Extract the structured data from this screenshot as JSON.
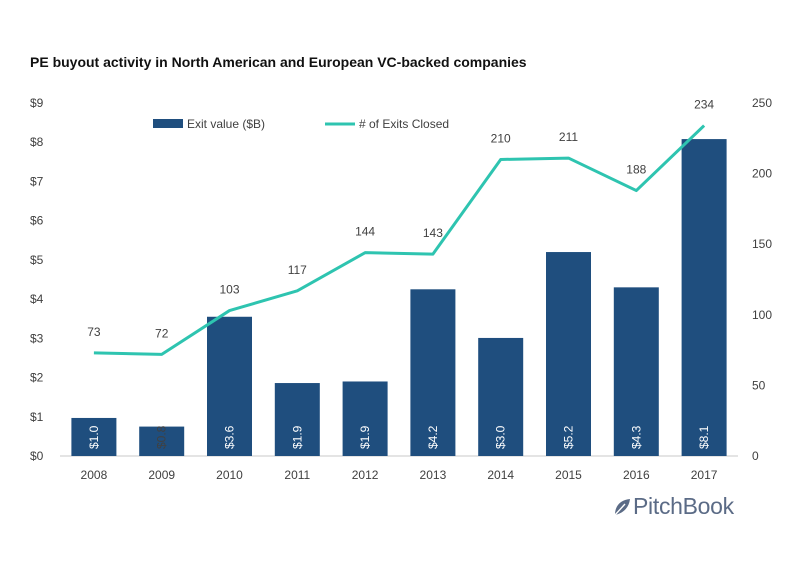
{
  "title": "PE buyout activity in North American and European VC-backed companies",
  "brand": "PitchBook",
  "chart_data": {
    "type": "bar+line",
    "categories": [
      "2008",
      "2009",
      "2010",
      "2011",
      "2012",
      "2013",
      "2014",
      "2015",
      "2016",
      "2017"
    ],
    "series": [
      {
        "name": "Exit value ($B)",
        "type": "bar",
        "axis": "left",
        "color": "#1f4e7e",
        "values": [
          1.0,
          0.8,
          3.6,
          1.9,
          1.9,
          4.2,
          3.0,
          5.2,
          4.3,
          8.1
        ],
        "labels": [
          "$1.0",
          "$0.8",
          "$3.6",
          "$1.9",
          "$1.9",
          "$4.2",
          "$3.0",
          "$5.2",
          "$4.3",
          "$8.1"
        ],
        "plot_values": [
          0.97,
          0.75,
          3.55,
          1.86,
          1.9,
          4.25,
          3.01,
          5.2,
          4.3,
          8.08
        ]
      },
      {
        "name": "# of Exits Closed",
        "type": "line",
        "axis": "right",
        "color": "#2ec4b0",
        "values": [
          73,
          72,
          103,
          117,
          144,
          143,
          210,
          211,
          188,
          234
        ]
      }
    ],
    "y_left": {
      "ylim": [
        0,
        9
      ],
      "ticks": [
        0,
        1,
        2,
        3,
        4,
        5,
        6,
        7,
        8,
        9
      ],
      "tick_labels": [
        "$0",
        "$1",
        "$2",
        "$3",
        "$4",
        "$5",
        "$6",
        "$7",
        "$8",
        "$9"
      ]
    },
    "y_right": {
      "ylim": [
        0,
        250
      ],
      "ticks": [
        0,
        50,
        100,
        150,
        200,
        250
      ],
      "tick_labels": [
        "0",
        "50",
        "100",
        "150",
        "200",
        "250"
      ]
    },
    "legend": "top-left inside plot",
    "grid": false
  }
}
